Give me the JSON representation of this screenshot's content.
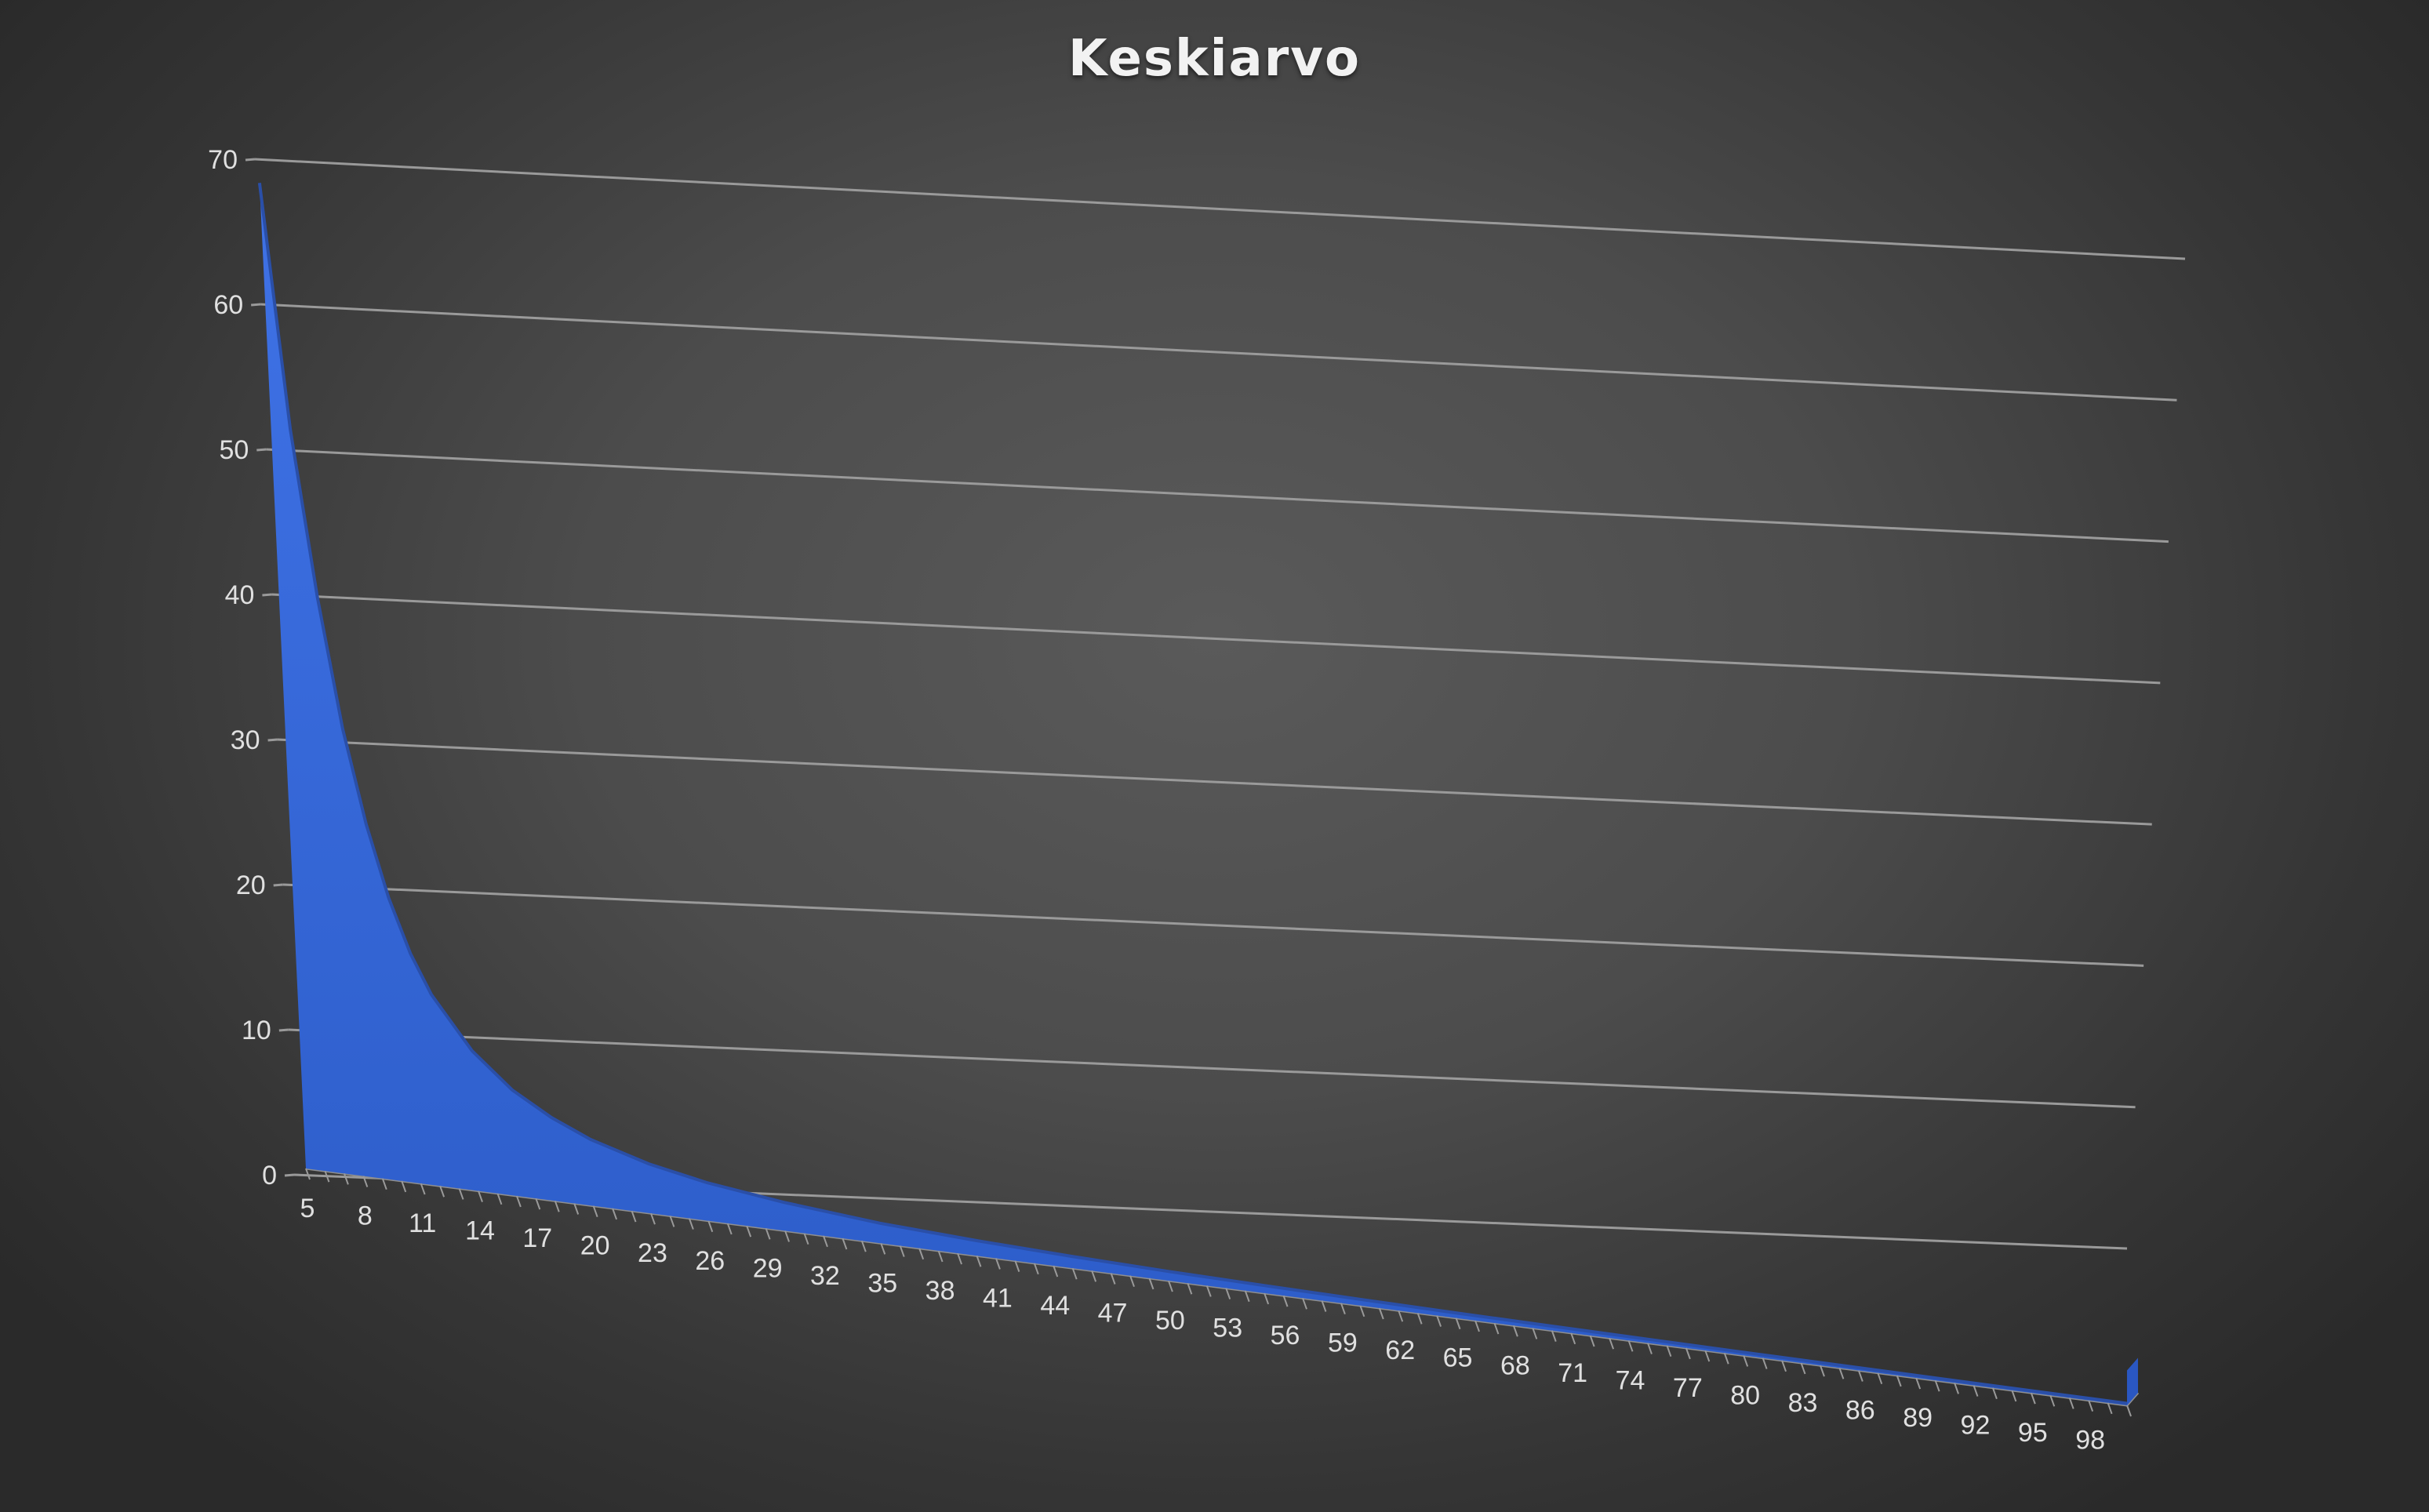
{
  "chart_data": {
    "type": "area",
    "title": "Keskiarvo",
    "xlabel": "",
    "ylabel": "",
    "x_range": [
      5,
      100
    ],
    "x_tick_labels": [
      5,
      8,
      11,
      14,
      17,
      20,
      23,
      26,
      29,
      32,
      35,
      38,
      41,
      44,
      47,
      50,
      53,
      56,
      59,
      62,
      65,
      68,
      71,
      74,
      77,
      80,
      83,
      86,
      89,
      92,
      95,
      98
    ],
    "ylim": [
      0,
      70
    ],
    "y_ticks": [
      0,
      10,
      20,
      30,
      40,
      50,
      60,
      70
    ],
    "grid": true,
    "legend": "none",
    "three_d": true,
    "series": [
      {
        "fill_color": "#3366d6",
        "x": [
          5,
          6,
          7,
          8,
          9,
          10,
          11,
          12,
          14,
          16,
          18,
          20,
          23,
          26,
          30,
          35,
          40,
          45,
          50,
          55,
          60,
          65,
          70,
          75,
          80,
          85,
          90,
          95,
          100
        ],
        "values": [
          69.0,
          52.0,
          40.5,
          31.5,
          25.0,
          20.0,
          16.3,
          13.6,
          10.0,
          7.6,
          6.0,
          4.8,
          3.6,
          2.8,
          2.1,
          1.5,
          1.15,
          0.9,
          0.72,
          0.6,
          0.5,
          0.42,
          0.36,
          0.31,
          0.27,
          0.24,
          0.21,
          0.19,
          0.17
        ]
      }
    ]
  },
  "colors": {
    "series_fill": "#3366d6",
    "gridline": "#9a9a9a",
    "text": "#e0e0e0"
  }
}
